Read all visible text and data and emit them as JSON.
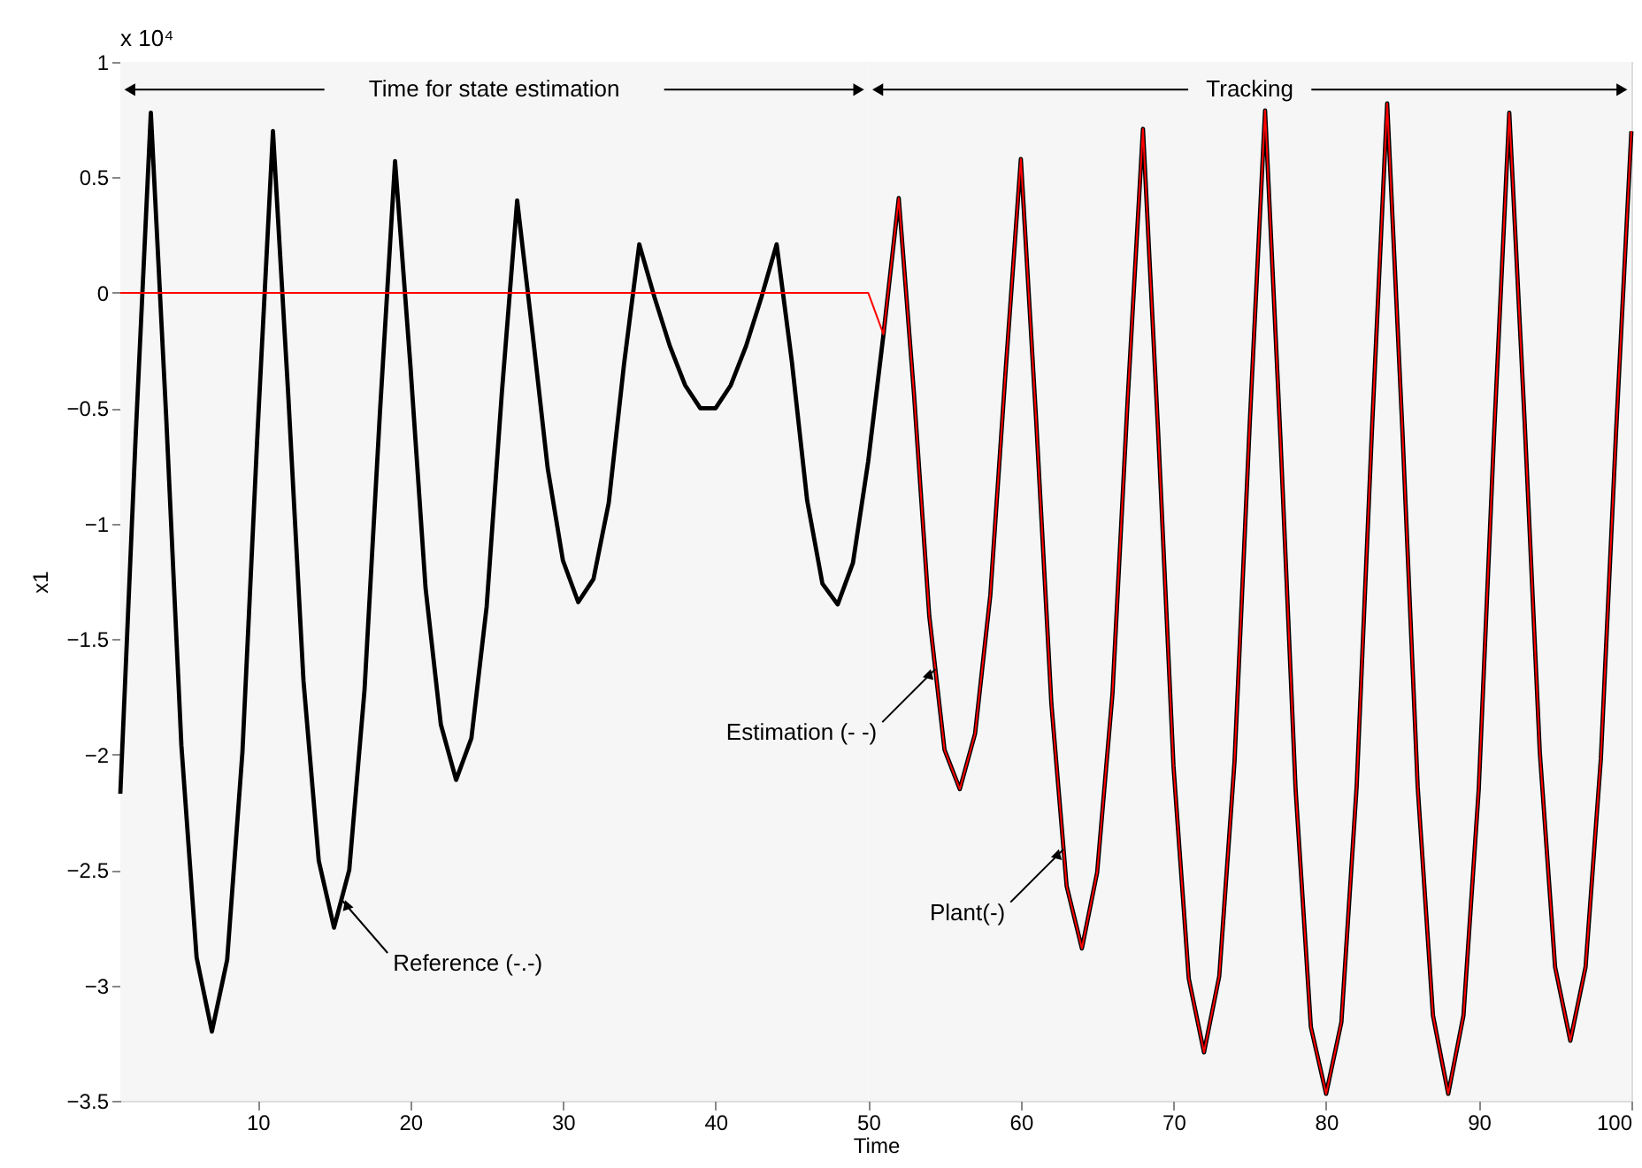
{
  "chart_data": {
    "type": "line",
    "xlabel": "Time",
    "ylabel": "x1",
    "x": [
      1,
      2,
      3,
      4,
      5,
      6,
      7,
      8,
      9,
      10,
      11,
      12,
      13,
      14,
      15,
      16,
      17,
      18,
      19,
      20,
      21,
      22,
      23,
      24,
      25,
      26,
      27,
      28,
      29,
      30,
      31,
      32,
      33,
      34,
      35,
      36,
      37,
      38,
      39,
      40,
      41,
      42,
      43,
      44,
      45,
      46,
      47,
      48,
      49,
      50,
      51,
      52,
      53,
      54,
      55,
      56,
      57,
      58,
      59,
      60,
      61,
      62,
      63,
      64,
      65,
      66,
      67,
      68,
      69,
      70,
      71,
      72,
      73,
      74,
      75,
      76,
      77,
      78,
      79,
      80,
      81,
      82,
      83,
      84,
      85,
      86,
      87,
      88,
      89,
      90,
      91,
      92,
      93,
      94,
      95,
      96,
      97,
      98,
      99,
      100
    ],
    "series": [
      {
        "color": "#000000",
        "values": [
          -2.17,
          -0.63,
          0.78,
          -0.53,
          -1.96,
          -2.88,
          -3.2,
          -2.89,
          -1.99,
          -0.59,
          0.7,
          -0.44,
          -1.68,
          -2.46,
          -2.75,
          -2.5,
          -1.72,
          -0.53,
          0.57,
          -0.31,
          -1.28,
          -1.87,
          -2.11,
          -1.93,
          -1.36,
          -0.43,
          0.4,
          -0.17,
          -0.76,
          -1.16,
          -1.34,
          -1.24,
          -0.91,
          -0.31,
          0.21,
          -0.02,
          -0.23,
          -0.4,
          -0.5,
          -0.5,
          -0.4,
          -0.23,
          -0.02,
          0.21,
          -0.3,
          -0.9,
          -1.26,
          -1.35,
          -1.17,
          -0.73,
          -0.18,
          0.41,
          -0.44,
          -1.4,
          -1.98,
          -2.15,
          -1.91,
          -1.31,
          -0.34,
          0.58,
          -0.55,
          -1.78,
          -2.57,
          -2.84,
          -2.51,
          -1.74,
          -0.46,
          0.71,
          -0.61,
          -2.05,
          -2.97,
          -3.29,
          -2.96,
          -2.03,
          -0.56,
          0.79,
          -0.62,
          -2.15,
          -3.18,
          -3.47,
          -3.16,
          -2.14,
          -0.6,
          0.82,
          -0.6,
          -2.14,
          -3.13,
          -3.47,
          -3.13,
          -2.15,
          -0.62,
          0.78,
          -0.55,
          -1.99,
          -2.92,
          -3.24,
          -2.92,
          -2.02,
          -0.6,
          0.7
        ]
      },
      {
        "color": "#ff0000",
        "values": [
          0,
          0,
          0,
          0,
          0,
          0,
          0,
          0,
          0,
          0,
          0,
          0,
          0,
          0,
          0,
          0,
          0,
          0,
          0,
          0,
          0,
          0,
          0,
          0,
          0,
          0,
          0,
          0,
          0,
          0,
          0,
          0,
          0,
          0,
          0,
          0,
          0,
          0,
          0,
          0,
          0,
          0,
          0,
          0,
          0,
          0,
          0,
          0,
          0,
          0,
          -0.18,
          0.41,
          -0.44,
          -1.4,
          -1.98,
          -2.15,
          -1.91,
          -1.31,
          -0.34,
          0.58,
          -0.55,
          -1.78,
          -2.57,
          -2.84,
          -2.51,
          -1.74,
          -0.46,
          0.71,
          -0.61,
          -2.05,
          -2.97,
          -3.29,
          -2.96,
          -2.03,
          -0.56,
          0.79,
          -0.62,
          -2.15,
          -3.18,
          -3.47,
          -3.16,
          -2.14,
          -0.6,
          0.82,
          -0.6,
          -2.14,
          -3.13,
          -3.47,
          -3.13,
          -2.15,
          -0.62,
          0.78,
          -0.55,
          -1.99,
          -2.92,
          -3.24,
          -2.92,
          -2.02,
          -0.6,
          0.7
        ]
      }
    ],
    "xlim": [
      1,
      100
    ],
    "xticks": [
      10,
      20,
      30,
      40,
      50,
      60,
      70,
      80,
      90,
      100
    ],
    "ylim": [
      -3.5,
      1
    ],
    "yticks": [
      -3.5,
      -3,
      -2.5,
      -2,
      -1.5,
      -1,
      -0.5,
      0,
      0.5,
      1
    ],
    "line_style": "solid",
    "marker": "none",
    "grid": false,
    "bands": [
      {
        "axis": "x",
        "from": 1,
        "to": 50,
        "label": "Time for state estimation",
        "color": "#f6f6f6"
      },
      {
        "axis": "x",
        "from": 50,
        "to": 100,
        "label": "Tracking",
        "color": "#f6f6f6"
      }
    ],
    "annotations": [
      "x 10⁴",
      {
        "text": "Reference (-.-)",
        "x": 15.5,
        "y": -2.63
      },
      {
        "text": "Estimation (- -)",
        "x": 54.4,
        "y": -1.63
      },
      {
        "text": "Plant(-)",
        "x": 62.8,
        "y": -2.41
      }
    ]
  }
}
